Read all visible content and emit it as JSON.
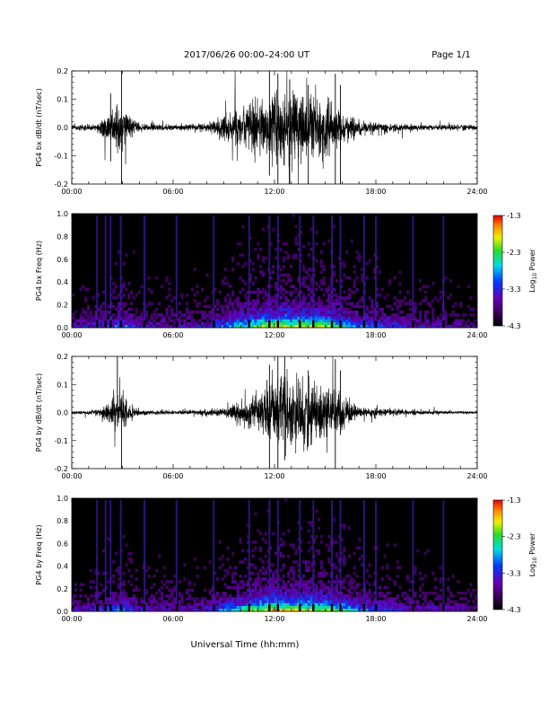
{
  "header": {
    "title": "2017/06/26  00:00–24:00 UT",
    "page": "Page 1/1"
  },
  "xlabel": "Universal Time (hh:mm)",
  "colors": {
    "trace": "#000000",
    "background": "#000000"
  },
  "colorbar": {
    "label_main": "Log",
    "label_sub": "10",
    "label_tail": " Power",
    "ticks": [
      "-1.3",
      "-2.3",
      "-3.3",
      "-4.3"
    ],
    "range": [
      -4.3,
      -1.3
    ]
  },
  "chart_data": [
    {
      "type": "line",
      "ylabel": "PG4 bx dB/dt (nT/sec)",
      "x_ticks": [
        "00:00",
        "06:00",
        "12:00",
        "18:00",
        "24:00"
      ],
      "y_ticks": [
        "0.2",
        "0.1",
        "0.0",
        "-0.1",
        "-0.2"
      ],
      "xlim": [
        0,
        24
      ],
      "ylim": [
        -0.2,
        0.2
      ],
      "envelope": {
        "hours": [
          0,
          1.5,
          2.0,
          2.5,
          3.0,
          3.5,
          4.0,
          5.0,
          6.0,
          7.0,
          8.0,
          8.5,
          9.0,
          10.0,
          11.0,
          12.0,
          13.0,
          14.0,
          15.0,
          15.5,
          16.0,
          17.0,
          18.0,
          19.0,
          20.0,
          21.0,
          22.0,
          23.0,
          24.0
        ],
        "amplitude": [
          0.01,
          0.012,
          0.05,
          0.07,
          0.09,
          0.04,
          0.015,
          0.012,
          0.01,
          0.012,
          0.015,
          0.03,
          0.05,
          0.07,
          0.1,
          0.13,
          0.14,
          0.12,
          0.1,
          0.08,
          0.06,
          0.03,
          0.02,
          0.015,
          0.012,
          0.01,
          0.01,
          0.01,
          0.01
        ]
      },
      "spikes": [
        {
          "hour": 2.95,
          "ymin": -0.2,
          "ymax": 0.2
        },
        {
          "hour": 2.3,
          "ymin": -0.12,
          "ymax": 0.12
        },
        {
          "hour": 11.7,
          "ymin": -0.17,
          "ymax": 0.2
        },
        {
          "hour": 12.2,
          "ymin": -0.2,
          "ymax": 0.19
        },
        {
          "hour": 12.9,
          "ymin": -0.2,
          "ymax": 0.17
        },
        {
          "hour": 14.0,
          "ymin": -0.2,
          "ymax": 0.15
        },
        {
          "hour": 15.6,
          "ymin": -0.2,
          "ymax": 0.19
        },
        {
          "hour": 15.9,
          "ymin": -0.2,
          "ymax": 0.15
        }
      ]
    },
    {
      "type": "heatmap",
      "ylabel": "PG4 bx Freq (Hz)",
      "x_ticks": [
        "00:00",
        "06:00",
        "12:00",
        "18:00",
        "24:00"
      ],
      "y_ticks": [
        "1.0",
        "0.8",
        "0.6",
        "0.4",
        "0.2",
        "0.0"
      ],
      "xlim": [
        0,
        24
      ],
      "ylim": [
        0,
        1.0
      ],
      "activity": {
        "hours": [
          0,
          2,
          3,
          4,
          6,
          8,
          9,
          10,
          11,
          12,
          13,
          14,
          15,
          16,
          17,
          18,
          20,
          22,
          24
        ],
        "level": [
          0.25,
          0.35,
          0.45,
          0.3,
          0.25,
          0.3,
          0.45,
          0.6,
          0.75,
          0.85,
          0.85,
          0.8,
          0.75,
          0.65,
          0.45,
          0.4,
          0.3,
          0.25,
          0.2
        ]
      },
      "bright_columns": [
        1.5,
        2.0,
        2.3,
        2.9,
        4.3,
        6.2,
        8.4,
        10.5,
        11.7,
        12.2,
        13.5,
        14.3,
        15.4,
        15.9,
        17.3,
        18.0,
        20.2,
        22.0
      ]
    },
    {
      "type": "line",
      "ylabel": "PG4 by dB/dt (nT/sec)",
      "x_ticks": [
        "00:00",
        "06:00",
        "12:00",
        "18:00",
        "24:00"
      ],
      "y_ticks": [
        "0.2",
        "0.1",
        "0.0",
        "-0.1",
        "-0.2"
      ],
      "xlim": [
        0,
        24
      ],
      "ylim": [
        -0.2,
        0.2
      ],
      "envelope": {
        "hours": [
          0,
          1.5,
          2.0,
          2.5,
          3.0,
          3.5,
          4.0,
          5.0,
          6.0,
          7.0,
          8.0,
          9.0,
          9.5,
          10.0,
          11.0,
          11.5,
          12.0,
          13.0,
          14.0,
          15.0,
          15.5,
          16.0,
          17.0,
          18.0,
          19.0,
          20.0,
          21.0,
          22.0,
          23.0,
          24.0
        ],
        "amplitude": [
          0.006,
          0.01,
          0.03,
          0.06,
          0.08,
          0.03,
          0.01,
          0.01,
          0.008,
          0.01,
          0.012,
          0.015,
          0.03,
          0.05,
          0.07,
          0.1,
          0.13,
          0.14,
          0.12,
          0.1,
          0.09,
          0.06,
          0.02,
          0.015,
          0.012,
          0.01,
          0.008,
          0.006,
          0.005,
          0.005
        ]
      },
      "spikes": [
        {
          "hour": 2.7,
          "ymin": -0.05,
          "ymax": 0.2
        },
        {
          "hour": 2.95,
          "ymin": -0.2,
          "ymax": 0.04
        },
        {
          "hour": 11.7,
          "ymin": -0.2,
          "ymax": 0.17
        },
        {
          "hour": 12.2,
          "ymin": -0.2,
          "ymax": 0.2
        },
        {
          "hour": 12.6,
          "ymin": -0.17,
          "ymax": 0.2
        },
        {
          "hour": 14.0,
          "ymin": -0.12,
          "ymax": 0.15
        },
        {
          "hour": 15.6,
          "ymin": -0.2,
          "ymax": 0.19
        },
        {
          "hour": 15.9,
          "ymin": -0.08,
          "ymax": 0.15
        }
      ]
    },
    {
      "type": "heatmap",
      "ylabel": "PG4 by Freq (Hz)",
      "x_ticks": [
        "00:00",
        "06:00",
        "12:00",
        "18:00",
        "24:00"
      ],
      "y_ticks": [
        "1.0",
        "0.8",
        "0.6",
        "0.4",
        "0.2",
        "0.0"
      ],
      "xlim": [
        0,
        24
      ],
      "ylim": [
        0,
        1.0
      ],
      "activity": {
        "hours": [
          0,
          2,
          3,
          4,
          6,
          8,
          9,
          10,
          11,
          12,
          13,
          14,
          15,
          16,
          17,
          18,
          20,
          22,
          24
        ],
        "level": [
          0.25,
          0.35,
          0.45,
          0.3,
          0.25,
          0.3,
          0.45,
          0.6,
          0.75,
          0.85,
          0.85,
          0.8,
          0.75,
          0.65,
          0.45,
          0.4,
          0.3,
          0.25,
          0.2
        ]
      },
      "bright_columns": [
        1.5,
        2.0,
        2.3,
        2.9,
        4.3,
        6.2,
        8.4,
        10.5,
        11.7,
        12.2,
        13.5,
        14.3,
        15.4,
        15.9,
        17.3,
        18.0,
        20.2,
        22.0
      ]
    }
  ]
}
